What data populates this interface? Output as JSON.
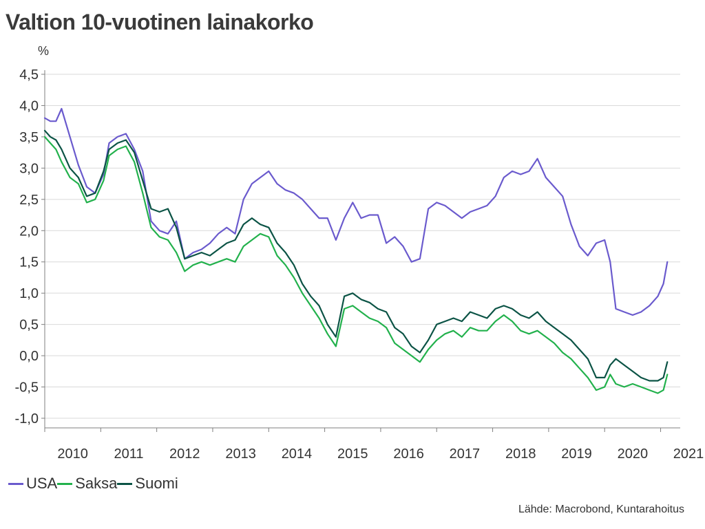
{
  "title": "Valtion 10-vuotinen lainakorko",
  "source": "Lähde: Macrobond, Kuntarahoitus",
  "chart_data": {
    "type": "line",
    "unit": "%",
    "ylim": [
      -1.0,
      4.5
    ],
    "yticks": [
      4.5,
      4.0,
      3.5,
      3.0,
      2.5,
      2.0,
      1.5,
      1.0,
      0.5,
      0.0,
      -0.5,
      -1.0
    ],
    "ytick_labels": [
      "4,5",
      "4,0",
      "3,5",
      "3,0",
      "2,5",
      "2,0",
      "1,5",
      "1,0",
      "0,5",
      "0,0",
      "-0,5",
      "-1,0"
    ],
    "xlim": [
      2010.0,
      2021.35
    ],
    "xticks": [
      "2010",
      "2011",
      "2012",
      "2013",
      "2014",
      "2015",
      "2016",
      "2017",
      "2018",
      "2019",
      "2020",
      "2021"
    ],
    "grid": true,
    "legend_position": "bottom-left",
    "series": [
      {
        "name": "USA",
        "color": "#6a5acd",
        "x": [
          2010.0,
          2010.1,
          2010.2,
          2010.3,
          2010.45,
          2010.6,
          2010.75,
          2010.9,
          2011.05,
          2011.15,
          2011.3,
          2011.45,
          2011.6,
          2011.75,
          2011.9,
          2012.05,
          2012.2,
          2012.35,
          2012.5,
          2012.65,
          2012.8,
          2012.95,
          2013.1,
          2013.25,
          2013.4,
          2013.55,
          2013.7,
          2013.85,
          2014.0,
          2014.15,
          2014.3,
          2014.45,
          2014.6,
          2014.75,
          2014.9,
          2015.05,
          2015.2,
          2015.35,
          2015.5,
          2015.65,
          2015.8,
          2015.95,
          2016.1,
          2016.25,
          2016.4,
          2016.55,
          2016.7,
          2016.85,
          2017.0,
          2017.15,
          2017.3,
          2017.45,
          2017.6,
          2017.75,
          2017.9,
          2018.05,
          2018.2,
          2018.35,
          2018.5,
          2018.65,
          2018.8,
          2018.95,
          2019.1,
          2019.25,
          2019.4,
          2019.55,
          2019.7,
          2019.85,
          2020.0,
          2020.1,
          2020.2,
          2020.35,
          2020.5,
          2020.65,
          2020.8,
          2020.95,
          2021.05,
          2021.12
        ],
        "values": [
          3.8,
          3.75,
          3.75,
          3.95,
          3.5,
          3.05,
          2.7,
          2.6,
          2.9,
          3.4,
          3.5,
          3.55,
          3.3,
          2.95,
          2.15,
          2.0,
          1.95,
          2.15,
          1.55,
          1.65,
          1.7,
          1.8,
          1.95,
          2.05,
          1.95,
          2.5,
          2.75,
          2.85,
          2.95,
          2.75,
          2.65,
          2.6,
          2.5,
          2.35,
          2.2,
          2.2,
          1.85,
          2.2,
          2.45,
          2.2,
          2.25,
          2.25,
          1.8,
          1.9,
          1.75,
          1.5,
          1.55,
          2.35,
          2.45,
          2.4,
          2.3,
          2.2,
          2.3,
          2.35,
          2.4,
          2.55,
          2.85,
          2.95,
          2.9,
          2.95,
          3.15,
          2.85,
          2.7,
          2.55,
          2.1,
          1.75,
          1.6,
          1.8,
          1.85,
          1.5,
          0.75,
          0.7,
          0.65,
          0.7,
          0.8,
          0.95,
          1.15,
          1.5
        ]
      },
      {
        "name": "Saksa",
        "color": "#22b14c",
        "x": [
          2010.0,
          2010.1,
          2010.2,
          2010.3,
          2010.45,
          2010.6,
          2010.75,
          2010.9,
          2011.05,
          2011.15,
          2011.3,
          2011.45,
          2011.6,
          2011.75,
          2011.9,
          2012.05,
          2012.2,
          2012.35,
          2012.5,
          2012.65,
          2012.8,
          2012.95,
          2013.1,
          2013.25,
          2013.4,
          2013.55,
          2013.7,
          2013.85,
          2014.0,
          2014.15,
          2014.3,
          2014.45,
          2014.6,
          2014.75,
          2014.9,
          2015.05,
          2015.2,
          2015.35,
          2015.5,
          2015.65,
          2015.8,
          2015.95,
          2016.1,
          2016.25,
          2016.4,
          2016.55,
          2016.7,
          2016.85,
          2017.0,
          2017.15,
          2017.3,
          2017.45,
          2017.6,
          2017.75,
          2017.9,
          2018.05,
          2018.2,
          2018.35,
          2018.5,
          2018.65,
          2018.8,
          2018.95,
          2019.1,
          2019.25,
          2019.4,
          2019.55,
          2019.7,
          2019.85,
          2020.0,
          2020.1,
          2020.2,
          2020.35,
          2020.5,
          2020.65,
          2020.8,
          2020.95,
          2021.05,
          2021.12
        ],
        "values": [
          3.5,
          3.4,
          3.3,
          3.1,
          2.85,
          2.75,
          2.45,
          2.5,
          2.8,
          3.2,
          3.3,
          3.35,
          3.1,
          2.6,
          2.05,
          1.9,
          1.85,
          1.65,
          1.35,
          1.45,
          1.5,
          1.45,
          1.5,
          1.55,
          1.5,
          1.75,
          1.85,
          1.95,
          1.9,
          1.6,
          1.45,
          1.25,
          1.0,
          0.8,
          0.6,
          0.35,
          0.15,
          0.75,
          0.8,
          0.7,
          0.6,
          0.55,
          0.45,
          0.2,
          0.1,
          0.0,
          -0.1,
          0.1,
          0.25,
          0.35,
          0.4,
          0.3,
          0.45,
          0.4,
          0.4,
          0.55,
          0.65,
          0.55,
          0.4,
          0.35,
          0.4,
          0.3,
          0.2,
          0.05,
          -0.05,
          -0.2,
          -0.35,
          -0.55,
          -0.5,
          -0.3,
          -0.45,
          -0.5,
          -0.45,
          -0.5,
          -0.55,
          -0.6,
          -0.55,
          -0.3
        ]
      },
      {
        "name": "Suomi",
        "color": "#0b5345",
        "x": [
          2010.0,
          2010.1,
          2010.2,
          2010.3,
          2010.45,
          2010.6,
          2010.75,
          2010.9,
          2011.05,
          2011.15,
          2011.3,
          2011.45,
          2011.6,
          2011.75,
          2011.9,
          2012.05,
          2012.2,
          2012.35,
          2012.5,
          2012.65,
          2012.8,
          2012.95,
          2013.1,
          2013.25,
          2013.4,
          2013.55,
          2013.7,
          2013.85,
          2014.0,
          2014.15,
          2014.3,
          2014.45,
          2014.6,
          2014.75,
          2014.9,
          2015.05,
          2015.2,
          2015.35,
          2015.5,
          2015.65,
          2015.8,
          2015.95,
          2016.1,
          2016.25,
          2016.4,
          2016.55,
          2016.7,
          2016.85,
          2017.0,
          2017.15,
          2017.3,
          2017.45,
          2017.6,
          2017.75,
          2017.9,
          2018.05,
          2018.2,
          2018.35,
          2018.5,
          2018.65,
          2018.8,
          2018.95,
          2019.1,
          2019.25,
          2019.4,
          2019.55,
          2019.7,
          2019.85,
          2020.0,
          2020.1,
          2020.2,
          2020.35,
          2020.5,
          2020.65,
          2020.8,
          2020.95,
          2021.05,
          2021.12
        ],
        "values": [
          3.6,
          3.5,
          3.45,
          3.3,
          3.0,
          2.85,
          2.55,
          2.6,
          2.95,
          3.3,
          3.4,
          3.45,
          3.25,
          2.8,
          2.35,
          2.3,
          2.35,
          2.05,
          1.55,
          1.6,
          1.65,
          1.6,
          1.7,
          1.8,
          1.85,
          2.1,
          2.2,
          2.1,
          2.05,
          1.8,
          1.65,
          1.45,
          1.15,
          0.95,
          0.8,
          0.5,
          0.3,
          0.95,
          1.0,
          0.9,
          0.85,
          0.75,
          0.7,
          0.45,
          0.35,
          0.15,
          0.05,
          0.25,
          0.5,
          0.55,
          0.6,
          0.55,
          0.7,
          0.65,
          0.6,
          0.75,
          0.8,
          0.75,
          0.65,
          0.6,
          0.7,
          0.55,
          0.45,
          0.35,
          0.25,
          0.1,
          -0.05,
          -0.35,
          -0.35,
          -0.15,
          -0.05,
          -0.15,
          -0.25,
          -0.35,
          -0.4,
          -0.4,
          -0.35,
          -0.1
        ]
      }
    ]
  }
}
